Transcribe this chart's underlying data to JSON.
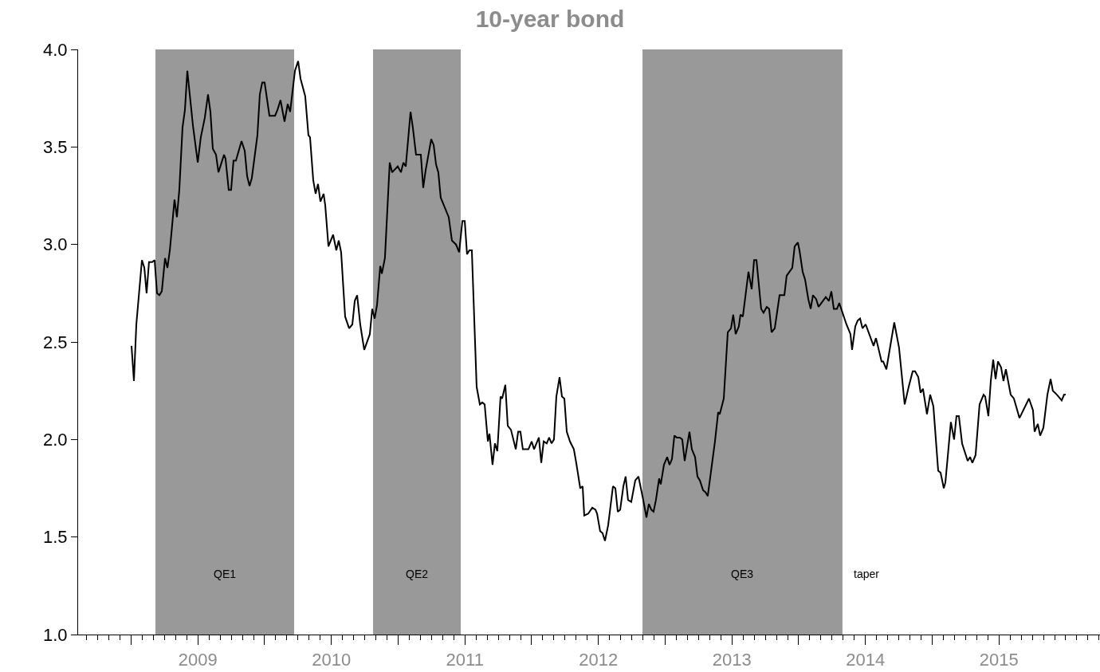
{
  "chart_data": {
    "type": "line",
    "title": "10-year bond",
    "x": [
      2009.003,
      2009.021,
      2009.039,
      2009.081,
      2009.099,
      2009.116,
      2009.134,
      2009.158,
      2009.176,
      2009.194,
      2009.212,
      2009.23,
      2009.254,
      2009.272,
      2009.29,
      2009.325,
      2009.343,
      2009.361,
      2009.385,
      2009.403,
      2009.421,
      2009.463,
      2009.499,
      2009.522,
      2009.552,
      2009.576,
      2009.594,
      2009.612,
      2009.636,
      2009.654,
      2009.696,
      2009.707,
      2009.731,
      2009.749,
      2009.767,
      2009.785,
      2009.827,
      2009.851,
      2009.869,
      2009.887,
      2009.904,
      2009.946,
      2009.964,
      2009.982,
      2010.0,
      2010.036,
      2010.078,
      2010.096,
      2010.119,
      2010.149,
      2010.173,
      2010.191,
      2010.227,
      2010.251,
      2010.269,
      2010.304,
      2010.328,
      2010.34,
      2010.364,
      2010.382,
      2010.4,
      2010.418,
      2010.442,
      2010.454,
      2010.478,
      2010.513,
      2010.537,
      2010.555,
      2010.573,
      2010.603,
      2010.633,
      2010.657,
      2010.675,
      2010.693,
      2010.716,
      2010.746,
      2010.788,
      2010.806,
      2010.824,
      2010.842,
      2010.866,
      2010.878,
      2010.901,
      2010.937,
      2010.955,
      2010.997,
      2011.021,
      2011.039,
      2011.057,
      2011.093,
      2011.11,
      2011.134,
      2011.17,
      2011.188,
      2011.206,
      2011.248,
      2011.266,
      2011.284,
      2011.301,
      2011.319,
      2011.379,
      2011.403,
      2011.433,
      2011.457,
      2011.481,
      2011.499,
      2011.516,
      2011.534,
      2011.552,
      2011.588,
      2011.612,
      2011.63,
      2011.648,
      2011.672,
      2011.684,
      2011.707,
      2011.725,
      2011.743,
      2011.767,
      2011.779,
      2011.803,
      2011.821,
      2011.845,
      2011.881,
      2011.899,
      2011.916,
      2011.934,
      2011.958,
      2011.976,
      2012.0,
      2012.018,
      2012.054,
      2012.072,
      2012.09,
      2012.113,
      2012.131,
      2012.149,
      2012.167,
      2012.185,
      2012.209,
      2012.227,
      2012.245,
      2012.263,
      2012.287,
      2012.316,
      2012.334,
      2012.364,
      2012.382,
      2012.394,
      2012.424,
      2012.454,
      2012.478,
      2012.49,
      2012.513,
      2012.531,
      2012.549,
      2012.573,
      2012.609,
      2012.627,
      2012.645,
      2012.663,
      2012.687,
      2012.704,
      2012.722,
      2012.746,
      2012.776,
      2012.8,
      2012.836,
      2012.86,
      2012.878,
      2012.896,
      2012.913,
      2012.931,
      2012.955,
      2012.967,
      2012.991,
      2013.015,
      2013.033,
      2013.051,
      2013.069,
      2013.087,
      2013.11,
      2013.128,
      2013.146,
      2013.182,
      2013.2,
      2013.224,
      2013.242,
      2013.26,
      2013.284,
      2013.302,
      2013.319,
      2013.373,
      2013.397,
      2013.409,
      2013.439,
      2013.469,
      2013.493,
      2013.51,
      2013.528,
      2013.552,
      2013.564,
      2013.582,
      2013.624,
      2013.648,
      2013.666,
      2013.684,
      2013.719,
      2013.737,
      2013.761,
      2013.779,
      2013.797,
      2013.821,
      2013.857,
      2013.893,
      2013.91,
      2013.952,
      2013.97,
      2013.994,
      2014.006,
      2014.03,
      2014.048,
      2014.072,
      2014.09,
      2014.107,
      2014.131,
      2014.149,
      2014.203,
      2014.227,
      2014.245,
      2014.263,
      2014.287,
      2014.304,
      2014.358,
      2014.388,
      2014.4,
      2014.424,
      2014.442,
      2014.46,
      2014.478,
      2014.502,
      2014.561,
      2014.579,
      2014.621,
      2014.633,
      2014.657,
      2014.716,
      2014.752,
      2014.794,
      2014.824,
      2014.854,
      2014.872,
      2014.896,
      2014.913,
      2014.931,
      2014.961,
      2014.985,
      2015.009,
      2015.045,
      2015.063,
      2015.087,
      2015.099,
      2015.14,
      2015.164,
      2015.182,
      2015.2,
      2015.224,
      2015.266,
      2015.284,
      2015.301,
      2015.325,
      2015.355,
      2015.385,
      2015.397,
      2015.421,
      2015.439,
      2015.457,
      2015.475,
      2015.493,
      2015.516,
      2015.534,
      2015.552,
      2015.588,
      2015.612,
      2015.654,
      2015.725,
      2015.755,
      2015.767,
      2015.791,
      2015.809,
      2015.833,
      2015.863,
      2015.887,
      2015.904,
      2015.934,
      2015.958,
      2015.97,
      2015.988,
      2016.0
    ],
    "series": [
      {
        "color": "#000000",
        "values": [
          2.48,
          2.3,
          2.59,
          2.92,
          2.88,
          2.75,
          2.91,
          2.91,
          2.92,
          2.75,
          2.74,
          2.76,
          2.93,
          2.88,
          2.97,
          3.23,
          3.14,
          3.28,
          3.6,
          3.69,
          3.89,
          3.61,
          3.42,
          3.55,
          3.65,
          3.77,
          3.68,
          3.49,
          3.46,
          3.37,
          3.46,
          3.44,
          3.28,
          3.28,
          3.43,
          3.43,
          3.53,
          3.48,
          3.35,
          3.3,
          3.34,
          3.56,
          3.77,
          3.83,
          3.83,
          3.66,
          3.66,
          3.69,
          3.74,
          3.63,
          3.72,
          3.68,
          3.89,
          3.94,
          3.85,
          3.76,
          3.56,
          3.55,
          3.33,
          3.26,
          3.31,
          3.22,
          3.26,
          3.2,
          2.99,
          3.05,
          2.97,
          3.02,
          2.96,
          2.63,
          2.57,
          2.59,
          2.71,
          2.74,
          2.59,
          2.46,
          2.54,
          2.67,
          2.62,
          2.69,
          2.89,
          2.85,
          2.93,
          3.42,
          3.37,
          3.4,
          3.37,
          3.42,
          3.4,
          3.68,
          3.6,
          3.46,
          3.46,
          3.29,
          3.38,
          3.54,
          3.51,
          3.41,
          3.37,
          3.24,
          3.14,
          3.02,
          3.0,
          2.96,
          3.12,
          3.12,
          2.95,
          2.97,
          2.97,
          2.27,
          2.18,
          2.19,
          2.18,
          1.99,
          2.03,
          1.87,
          1.98,
          1.94,
          2.22,
          2.21,
          2.28,
          2.07,
          2.05,
          1.95,
          2.04,
          2.04,
          1.95,
          1.95,
          1.95,
          1.99,
          1.95,
          2.01,
          1.88,
          1.99,
          1.98,
          2.01,
          1.98,
          2.0,
          2.22,
          2.32,
          2.22,
          2.21,
          2.04,
          1.99,
          1.95,
          1.88,
          1.75,
          1.76,
          1.61,
          1.62,
          1.65,
          1.64,
          1.62,
          1.53,
          1.52,
          1.48,
          1.56,
          1.76,
          1.75,
          1.63,
          1.64,
          1.76,
          1.81,
          1.69,
          1.68,
          1.79,
          1.81,
          1.69,
          1.6,
          1.67,
          1.64,
          1.63,
          1.69,
          1.8,
          1.77,
          1.87,
          1.91,
          1.87,
          1.9,
          2.02,
          2.01,
          2.01,
          2.0,
          1.89,
          2.04,
          1.95,
          1.91,
          1.81,
          1.79,
          1.74,
          1.73,
          1.71,
          1.99,
          2.14,
          2.13,
          2.21,
          2.55,
          2.57,
          2.64,
          2.54,
          2.58,
          2.64,
          2.63,
          2.86,
          2.77,
          2.92,
          2.92,
          2.67,
          2.65,
          2.68,
          2.67,
          2.55,
          2.57,
          2.74,
          2.74,
          2.84,
          2.88,
          2.99,
          3.01,
          2.97,
          2.86,
          2.82,
          2.72,
          2.67,
          2.74,
          2.72,
          2.68,
          2.73,
          2.71,
          2.76,
          2.67,
          2.67,
          2.7,
          2.59,
          2.54,
          2.46,
          2.58,
          2.61,
          2.62,
          2.57,
          2.59,
          2.48,
          2.52,
          2.4,
          2.4,
          2.36,
          2.6,
          2.47,
          2.18,
          2.27,
          2.35,
          2.35,
          2.32,
          2.24,
          2.26,
          2.13,
          2.23,
          2.17,
          1.84,
          1.83,
          1.75,
          1.78,
          2.09,
          2.0,
          2.12,
          2.12,
          1.98,
          1.89,
          1.91,
          1.88,
          1.92,
          2.18,
          2.23,
          2.22,
          2.12,
          2.3,
          2.41,
          2.31,
          2.4,
          2.37,
          2.3,
          2.36,
          2.23,
          2.21,
          2.11,
          2.21,
          2.15,
          2.04,
          2.08,
          2.02,
          2.06,
          2.23,
          2.31,
          2.25,
          2.23,
          2.21,
          2.2,
          2.23,
          2.23
        ]
      }
    ],
    "xlim": [
      2008.603,
      2016.257
    ],
    "xticks": [
      {
        "value": 2009,
        "label": null
      },
      {
        "value": 2009.5,
        "label": "2009"
      },
      {
        "value": 2010,
        "label": null
      },
      {
        "value": 2010.5,
        "label": "2010"
      },
      {
        "value": 2011,
        "label": null
      },
      {
        "value": 2011.5,
        "label": "2011"
      },
      {
        "value": 2012,
        "label": null
      },
      {
        "value": 2012.5,
        "label": "2012"
      },
      {
        "value": 2013,
        "label": null
      },
      {
        "value": 2013.5,
        "label": "2013"
      },
      {
        "value": 2014,
        "label": null
      },
      {
        "value": 2014.5,
        "label": "2014"
      },
      {
        "value": 2015,
        "label": null
      },
      {
        "value": 2015.5,
        "label": "2015"
      }
    ],
    "ylim": [
      1.0,
      4.0
    ],
    "yticks": [
      {
        "value": 1.0,
        "label": "1.0"
      },
      {
        "value": 1.5,
        "label": "1.5"
      },
      {
        "value": 2.0,
        "label": "2.0"
      },
      {
        "value": 2.5,
        "label": "2.5"
      },
      {
        "value": 3.0,
        "label": "3.0"
      },
      {
        "value": 3.5,
        "label": "3.5"
      },
      {
        "value": 4.0,
        "label": "4.0"
      }
    ],
    "bands": [
      {
        "axis": "x",
        "from": 2009.182,
        "to": 2010.221,
        "label": "QE1",
        "color": "#999999"
      },
      {
        "axis": "x",
        "from": 2010.812,
        "to": 2011.469,
        "label": "QE2",
        "color": "#999999"
      },
      {
        "axis": "x",
        "from": 2012.83,
        "to": 2014.328,
        "label": "QE3",
        "color": "#999999"
      }
    ],
    "annotations": [
      "taper"
    ],
    "line_style": "solid"
  }
}
